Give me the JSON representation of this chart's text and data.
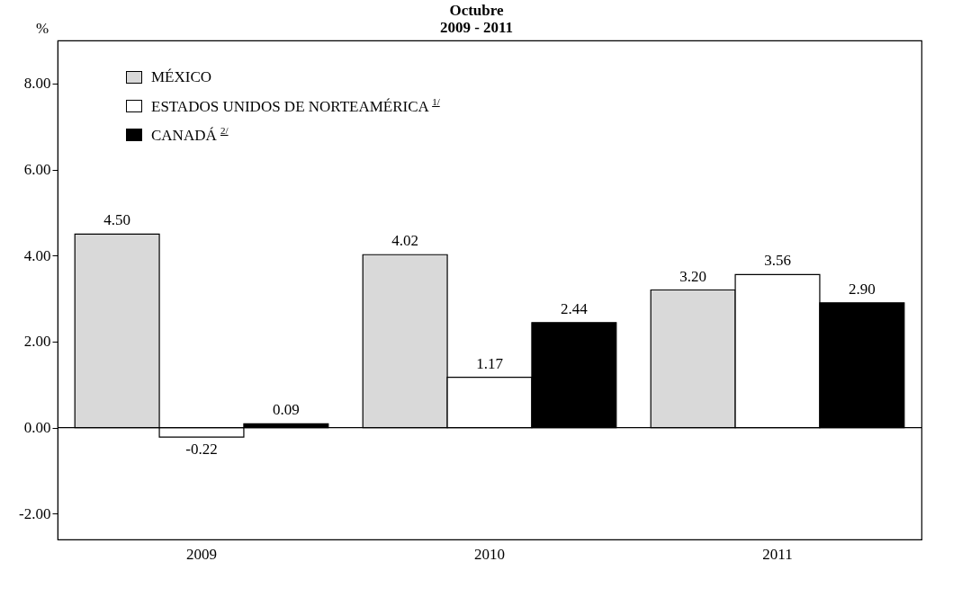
{
  "chart_data": {
    "type": "bar",
    "title": "Octubre",
    "subtitle": "2009 - 2011",
    "ylabel": "%",
    "categories": [
      "2009",
      "2010",
      "2011"
    ],
    "series": [
      {
        "name": "MÉXICO",
        "color": "#d9d9d9",
        "values": [
          4.5,
          4.02,
          3.2
        ],
        "value_labels": [
          "4.50",
          "4.02",
          "3.20"
        ]
      },
      {
        "name": "ESTADOS UNIDOS DE NORTEAMÉRICA $^{1/}$",
        "color": "#ffffff",
        "values": [
          -0.22,
          1.17,
          3.56
        ],
        "value_labels": [
          "-0.22",
          "1.17",
          "3.56"
        ]
      },
      {
        "name": "CANADÁ $^{2/}$",
        "color": "#000000",
        "values": [
          0.09,
          2.44,
          2.9
        ],
        "value_labels": [
          "0.09",
          "2.44",
          "2.90"
        ]
      }
    ],
    "ylim": [
      -2.6,
      9.0
    ],
    "yticks": [
      {
        "value": -2,
        "label": "-2.00"
      },
      {
        "value": 0,
        "label": "0.00"
      },
      {
        "value": 2,
        "label": "2.00"
      },
      {
        "value": 4,
        "label": "4.00"
      },
      {
        "value": 6,
        "label": "6.00"
      },
      {
        "value": 8,
        "label": "8.00"
      }
    ],
    "ref_lines": [
      {
        "axis": "y",
        "value": 0
      }
    ],
    "legend": "top left",
    "grid": false
  }
}
